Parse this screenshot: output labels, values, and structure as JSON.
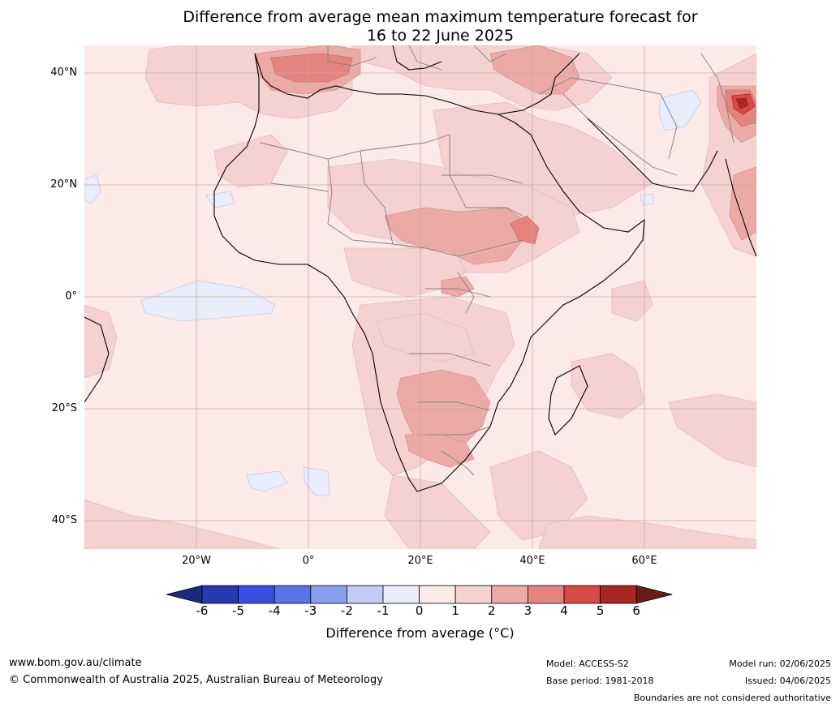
{
  "title": {
    "line1": "Difference from average mean maximum temperature forecast for",
    "line2": "16 to 22 June 2025"
  },
  "map": {
    "latitude_labels": [
      "40°N",
      "20°N",
      "0°",
      "20°S",
      "40°S"
    ],
    "longitude_labels": [
      "20°W",
      "0°",
      "20°E",
      "40°E",
      "60°E"
    ],
    "background_color": "#fbeae8",
    "coast_color": "#000000",
    "border_color": "#808080"
  },
  "colorbar": {
    "label": "Difference from average (°C)",
    "ticks": [
      "-6",
      "-5",
      "-4",
      "-3",
      "-2",
      "-1",
      "0",
      "1",
      "2",
      "3",
      "4",
      "5",
      "6"
    ],
    "colors": [
      "#1c2a7d",
      "#2838b0",
      "#3550e2",
      "#5a74e6",
      "#8a9ef0",
      "#c2ccf3",
      "#e8ecfb",
      "#fbeae8",
      "#f5d2cf",
      "#ecaaa6",
      "#e5847e",
      "#d94a42",
      "#a82820",
      "#6b1c14"
    ]
  },
  "footer": {
    "website": "www.bom.gov.au/climate",
    "copyright": "© Commonwealth of Australia 2025, Australian Bureau of Meteorology",
    "model": "Model: ACCESS-S2",
    "base_period": "Base period: 1981-2018",
    "model_run": "Model run: 02/06/2025",
    "issued": "Issued: 04/06/2025",
    "disclaimer": "Boundaries are not considered authoritative"
  }
}
